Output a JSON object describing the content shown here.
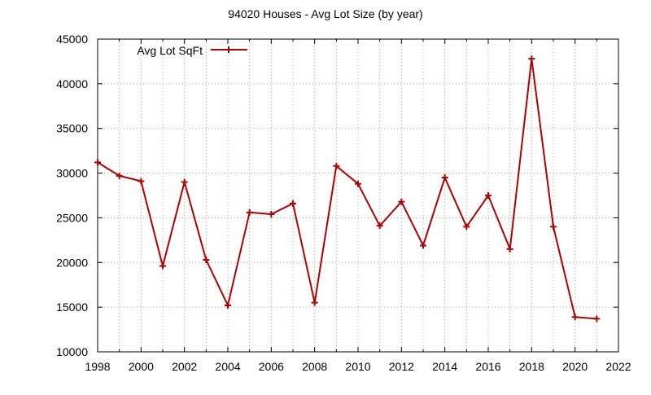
{
  "chart_data": {
    "type": "line",
    "title": "94020 Houses - Avg Lot Size (by year)",
    "xlabel": "",
    "ylabel": "",
    "xlim": [
      1998,
      2022
    ],
    "ylim": [
      10000,
      45000
    ],
    "x_ticks": [
      1998,
      2000,
      2002,
      2004,
      2006,
      2008,
      2010,
      2012,
      2014,
      2016,
      2018,
      2020,
      2022
    ],
    "y_ticks": [
      10000,
      15000,
      20000,
      25000,
      30000,
      35000,
      40000,
      45000
    ],
    "grid": true,
    "grid_style": "dotted",
    "x_grid_step": 1,
    "legend_position": "top-left",
    "series": [
      {
        "name": "Avg Lot SqFt",
        "color": "#b00000",
        "marker": "plus",
        "x": [
          1998,
          1999,
          2000,
          2001,
          2002,
          2003,
          2004,
          2005,
          2006,
          2007,
          2008,
          2009,
          2010,
          2011,
          2012,
          2013,
          2014,
          2015,
          2016,
          2017,
          2018,
          2019,
          2020,
          2021
        ],
        "y": [
          31200,
          29700,
          29100,
          19600,
          29000,
          20300,
          15200,
          25600,
          25400,
          26600,
          15500,
          30800,
          28800,
          24100,
          26800,
          21900,
          29500,
          24000,
          27500,
          21500,
          42800,
          24000,
          13900,
          13700
        ]
      }
    ]
  }
}
